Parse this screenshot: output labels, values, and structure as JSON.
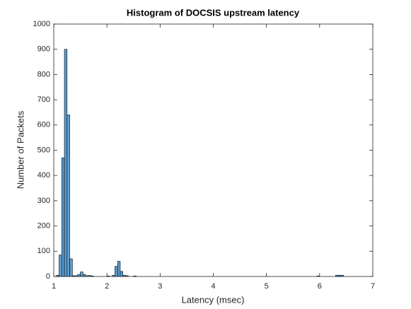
{
  "chart_data": {
    "type": "histogram",
    "title": "Histogram of DOCSIS upstream latency",
    "x_label": "Latency (msec)",
    "y_label": "Number of Packets",
    "bins": [
      1,
      1.05,
      1.1,
      1.15,
      1.2,
      1.25,
      1.3,
      1.35,
      1.4,
      1.45,
      1.5,
      1.55,
      1.6,
      1.65,
      1.7,
      1.75,
      1.8,
      1.85,
      1.9,
      1.95,
      2,
      2.05,
      2.1,
      2.15,
      2.2,
      2.25,
      2.3,
      2.35,
      2.4,
      2.45,
      2.5,
      2.55,
      2.6,
      2.65,
      2.7,
      2.75,
      2.8,
      2.85,
      2.9,
      2.95,
      3,
      3.05,
      3.1,
      3.15,
      3.2,
      3.25,
      3.3,
      3.35,
      3.4,
      3.45,
      3.5,
      3.55,
      3.6,
      3.65,
      3.7,
      3.75,
      3.8,
      3.85,
      3.9,
      3.95,
      4,
      4.05,
      4.1,
      4.15,
      4.2,
      4.25,
      4.3,
      4.35,
      4.4,
      4.45,
      4.5,
      4.55,
      4.6,
      4.65,
      4.7,
      4.75,
      4.8,
      4.85,
      4.9,
      4.95,
      5,
      5.05,
      5.1,
      5.15,
      5.2,
      5.25,
      5.3,
      5.35,
      5.4,
      5.45,
      5.5,
      5.55,
      5.6,
      5.65,
      5.7,
      5.75,
      5.8,
      5.85,
      5.9,
      5.95,
      6,
      6.05,
      6.1,
      6.15,
      6.2,
      6.25,
      6.3,
      6.35,
      6.4,
      6.45,
      6.5
    ],
    "values": [
      0,
      5,
      85,
      470,
      900,
      640,
      70,
      3,
      3,
      8,
      18,
      8,
      3,
      4,
      2,
      0,
      0,
      0,
      0,
      0,
      2,
      0,
      5,
      40,
      60,
      20,
      5,
      3,
      0,
      0,
      2,
      0,
      0,
      0,
      0,
      0,
      0,
      0,
      0,
      0,
      0,
      0,
      0,
      0,
      0,
      0,
      0,
      0,
      0,
      0,
      0,
      0,
      0,
      0,
      0,
      0,
      0,
      0,
      0,
      0,
      0,
      0,
      0,
      0,
      0,
      0,
      0,
      0,
      0,
      0,
      0,
      0,
      0,
      0,
      0,
      0,
      0,
      0,
      0,
      0,
      0,
      0,
      0,
      0,
      0,
      0,
      0,
      0,
      0,
      0,
      0,
      0,
      0,
      0,
      0,
      0,
      0,
      0,
      0,
      2,
      0,
      0,
      0,
      0,
      0,
      0,
      5,
      5,
      5,
      0
    ],
    "color": "#5b9fd4",
    "edge_color": "#000000",
    "xlim": [
      1,
      7
    ],
    "xticks": [
      1,
      2,
      3,
      4,
      5,
      6,
      7
    ],
    "ylim": [
      0,
      1000
    ],
    "yticks": [
      0,
      100,
      200,
      300,
      400,
      500,
      600,
      700,
      800,
      900,
      1000
    ]
  }
}
